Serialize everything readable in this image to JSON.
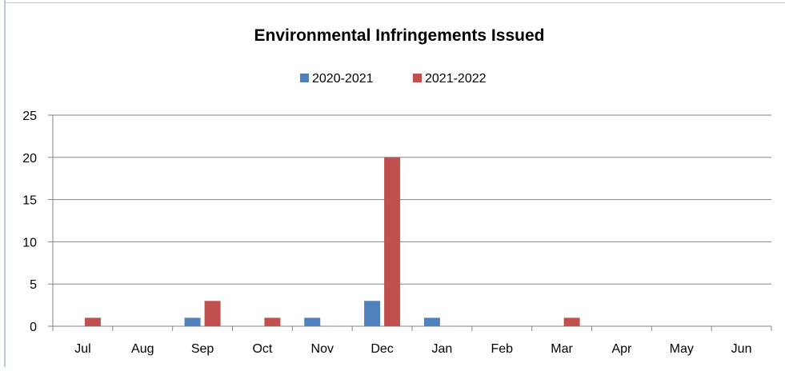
{
  "chart_data": {
    "type": "bar",
    "title": "Environmental Infringements Issued",
    "categories": [
      "Jul",
      "Aug",
      "Sep",
      "Oct",
      "Nov",
      "Dec",
      "Jan",
      "Feb",
      "Mar",
      "Apr",
      "May",
      "Jun"
    ],
    "series": [
      {
        "name": "2020-2021",
        "color": "#4F81BD",
        "values": [
          0,
          0,
          1,
          0,
          1,
          3,
          1,
          0,
          0,
          0,
          0,
          0
        ]
      },
      {
        "name": "2021-2022",
        "color": "#C0504D",
        "values": [
          1,
          0,
          3,
          1,
          0,
          20,
          0,
          0,
          1,
          0,
          0,
          0
        ]
      }
    ],
    "yticks": [
      "0",
      "5",
      "10",
      "15",
      "20",
      "25"
    ],
    "ylim": [
      0,
      25
    ],
    "grid": true,
    "legend_position": "top"
  }
}
